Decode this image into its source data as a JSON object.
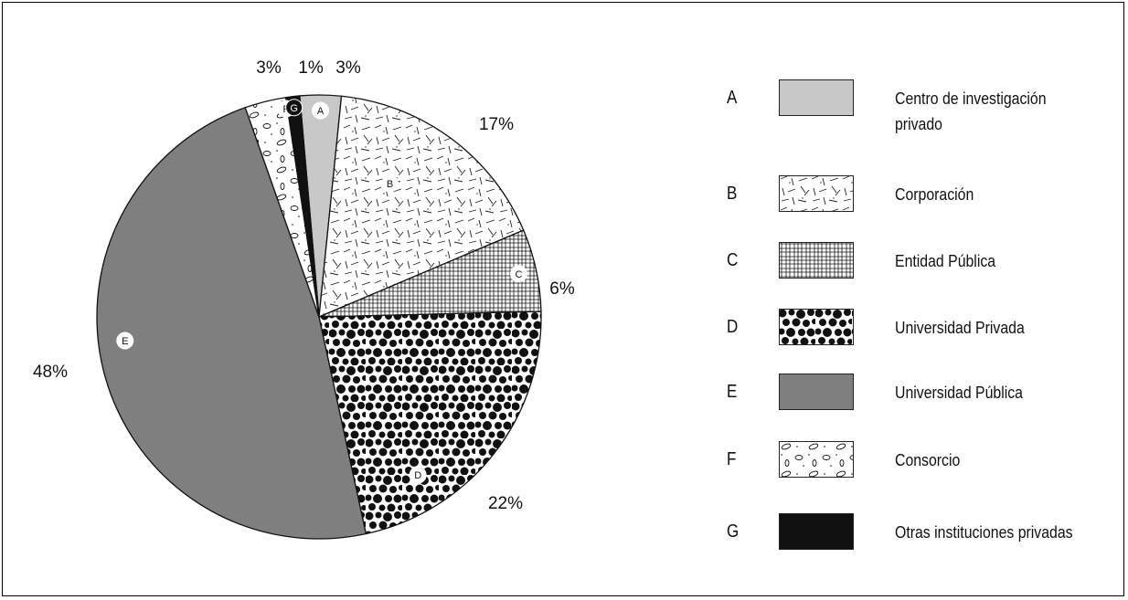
{
  "chart_data": {
    "type": "pie",
    "slices": [
      {
        "letter": "A",
        "label": "Centro de investigación privado",
        "value": 3,
        "value_label": "3%",
        "pattern": "solid-light-gray"
      },
      {
        "letter": "B",
        "label": "Corporación",
        "value": 17,
        "value_label": "17%",
        "pattern": "dashes"
      },
      {
        "letter": "C",
        "label": "Entidad Pública",
        "value": 6,
        "value_label": "6%",
        "pattern": "grid"
      },
      {
        "letter": "D",
        "label": "Universidad Privada",
        "value": 22,
        "value_label": "22%",
        "pattern": "black-dots"
      },
      {
        "letter": "E",
        "label": "Universidad Pública",
        "value": 48,
        "value_label": "48%",
        "pattern": "solid-dark-gray"
      },
      {
        "letter": "F",
        "label": "Consorcio",
        "value": 3,
        "value_label": "3%",
        "pattern": "ovals"
      },
      {
        "letter": "G",
        "label": "Otras instituciones privadas",
        "value": 1,
        "value_label": "1%",
        "pattern": "solid-black"
      }
    ],
    "legend_position": "right",
    "colors": {
      "A": "#c8c8c8",
      "E": "#7f7f7f",
      "G": "#111111",
      "D": "#111111"
    }
  }
}
